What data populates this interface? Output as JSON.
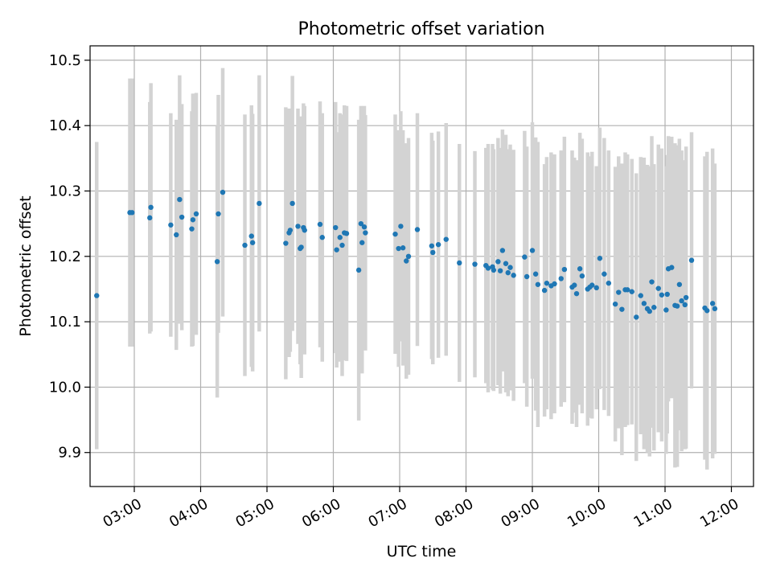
{
  "chart_data": {
    "type": "scatter",
    "title": "Photometric offset variation",
    "xlabel": "UTC time",
    "ylabel": "Photometric offset",
    "grid": true,
    "colors": {
      "points": "#1f77b4",
      "errorbars": "#d3d3d3",
      "grid": "#b0b0b0"
    },
    "xlim": [
      "02:20",
      "12:20"
    ],
    "ylim": [
      9.848,
      10.522
    ],
    "x_ticks": [
      "03:00",
      "04:00",
      "05:00",
      "06:00",
      "07:00",
      "08:00",
      "09:00",
      "10:00",
      "11:00",
      "12:00"
    ],
    "y_ticks": [
      "9.9",
      "10.0",
      "10.1",
      "10.2",
      "10.3",
      "10.4",
      "10.5"
    ],
    "series": [
      {
        "x": [
          "02:26",
          "02:56",
          "02:58",
          "03:14",
          "03:15",
          "03:33",
          "03:38",
          "03:41",
          "03:43",
          "03:52",
          "03:53",
          "03:56",
          "04:15",
          "04:16",
          "04:20",
          "04:40",
          "04:46",
          "04:47",
          "04:53",
          "05:17",
          "05:20",
          "05:21",
          "05:23",
          "05:28",
          "05:30",
          "05:31",
          "05:33",
          "05:34",
          "05:48",
          "05:50",
          "06:02",
          "06:03",
          "06:06",
          "06:08",
          "06:10",
          "06:12",
          "06:23",
          "06:25",
          "06:26",
          "06:28",
          "06:29",
          "06:56",
          "06:59",
          "07:01",
          "07:03",
          "07:06",
          "07:08",
          "07:16",
          "07:29",
          "07:30",
          "07:35",
          "07:42",
          "07:54",
          "08:08",
          "08:18",
          "08:20",
          "08:24",
          "08:25",
          "08:29",
          "08:31",
          "08:33",
          "08:36",
          "08:38",
          "08:40",
          "08:43",
          "08:53",
          "08:55",
          "09:00",
          "09:03",
          "09:05",
          "09:11",
          "09:13",
          "09:17",
          "09:20",
          "09:26",
          "09:29",
          "09:36",
          "09:38",
          "09:40",
          "09:43",
          "09:45",
          "09:50",
          "09:52",
          "09:54",
          "09:58",
          "10:01",
          "10:05",
          "10:09",
          "10:15",
          "10:18",
          "10:21",
          "10:24",
          "10:26",
          "10:30",
          "10:34",
          "10:38",
          "10:41",
          "10:44",
          "10:46",
          "10:48",
          "10:50",
          "10:54",
          "10:57",
          "11:01",
          "11:02",
          "11:03",
          "11:06",
          "11:09",
          "11:11",
          "11:13",
          "11:15",
          "11:18",
          "11:19",
          "11:24",
          "11:36",
          "11:38",
          "11:43",
          "11:45"
        ],
        "y": [
          10.14,
          10.267,
          10.267,
          10.259,
          10.275,
          10.248,
          10.233,
          10.287,
          10.26,
          10.242,
          10.256,
          10.265,
          10.192,
          10.265,
          10.298,
          10.217,
          10.231,
          10.221,
          10.281,
          10.22,
          10.236,
          10.24,
          10.281,
          10.246,
          10.212,
          10.214,
          10.244,
          10.24,
          10.249,
          10.229,
          10.244,
          10.21,
          10.229,
          10.217,
          10.236,
          10.235,
          10.179,
          10.25,
          10.221,
          10.245,
          10.236,
          10.234,
          10.212,
          10.246,
          10.213,
          10.193,
          10.2,
          10.241,
          10.216,
          10.206,
          10.218,
          10.226,
          10.19,
          10.188,
          10.186,
          10.182,
          10.184,
          10.179,
          10.192,
          10.178,
          10.209,
          10.189,
          10.175,
          10.183,
          10.171,
          10.199,
          10.169,
          10.209,
          10.173,
          10.157,
          10.148,
          10.159,
          10.155,
          10.158,
          10.166,
          10.18,
          10.153,
          10.156,
          10.143,
          10.181,
          10.17,
          10.15,
          10.153,
          10.156,
          10.152,
          10.197,
          10.173,
          10.159,
          10.127,
          10.145,
          10.119,
          10.149,
          10.149,
          10.146,
          10.107,
          10.14,
          10.128,
          10.12,
          10.116,
          10.161,
          10.122,
          10.151,
          10.141,
          10.118,
          10.142,
          10.181,
          10.183,
          10.125,
          10.124,
          10.157,
          10.132,
          10.126,
          10.137,
          10.194,
          10.121,
          10.117,
          10.128,
          10.12
        ],
        "yerr": [
          0.235,
          0.205,
          0.205,
          0.177,
          0.19,
          0.171,
          0.176,
          0.19,
          0.173,
          0.18,
          0.193,
          0.185,
          0.208,
          0.182,
          0.19,
          0.2,
          0.2,
          0.197,
          0.196,
          0.208,
          0.19,
          0.186,
          0.195,
          0.18,
          0.177,
          0.2,
          0.19,
          0.19,
          0.188,
          0.19,
          0.192,
          0.18,
          0.19,
          0.2,
          0.195,
          0.195,
          0.23,
          0.18,
          0.2,
          0.185,
          0.18,
          0.183,
          0.181,
          0.176,
          0.18,
          0.18,
          0.181,
          0.178,
          0.173,
          0.171,
          0.173,
          0.178,
          0.182,
          0.173,
          0.18,
          0.19,
          0.188,
          0.185,
          0.189,
          0.188,
          0.185,
          0.197,
          0.189,
          0.188,
          0.192,
          0.193,
          0.199,
          0.196,
          0.209,
          0.218,
          0.193,
          0.193,
          0.204,
          0.198,
          0.196,
          0.203,
          0.209,
          0.195,
          0.204,
          0.208,
          0.21,
          0.209,
          0.2,
          0.204,
          0.186,
          0.2,
          0.208,
          0.203,
          0.21,
          0.208,
          0.223,
          0.21,
          0.207,
          0.203,
          0.22,
          0.212,
          0.223,
          0.22,
          0.222,
          0.223,
          0.219,
          0.22,
          0.224,
          0.22,
          0.213,
          0.203,
          0.2,
          0.248,
          0.246,
          0.223,
          0.23,
          0.221,
          0.231,
          0.196,
          0.232,
          0.243,
          0.237,
          0.222
        ]
      }
    ]
  }
}
